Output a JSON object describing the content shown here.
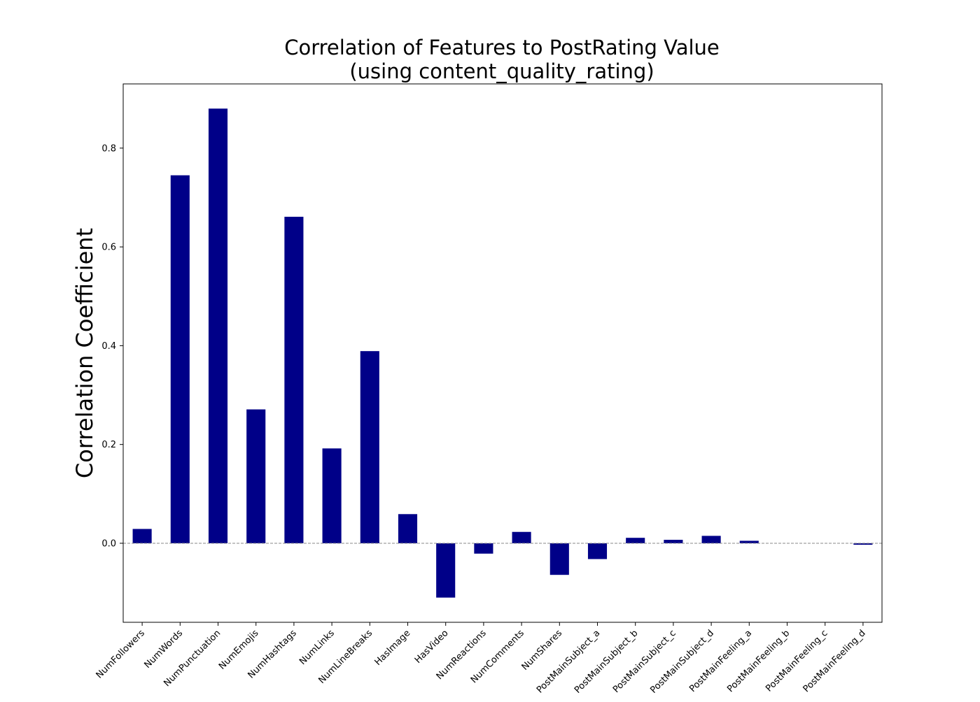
{
  "chart_data": {
    "type": "bar",
    "title": "Correlation of Features to PostRating Value",
    "subtitle": "(using content_quality_rating)",
    "xlabel": "",
    "ylabel": "Correlation Coefficient",
    "ylim": [
      -0.16,
      0.93
    ],
    "yticks": [
      0.0,
      0.2,
      0.4,
      0.6,
      0.8
    ],
    "ytick_labels": [
      "0.0",
      "0.2",
      "0.4",
      "0.6",
      "0.8"
    ],
    "grid": false,
    "zero_line": true,
    "bar_color": "#000088",
    "zero_line_color": "#888888",
    "categories": [
      "NumFollowers",
      "NumWords",
      "NumPunctuation",
      "NumEmojis",
      "NumHashtags",
      "NumLinks",
      "NumLineBreaks",
      "HasImage",
      "HasVideo",
      "NumReactions",
      "NumComments",
      "NumShares",
      "PostMainSubject_a",
      "PostMainSubject_b",
      "PostMainSubject_c",
      "PostMainSubject_d",
      "PostMainFeeling_a",
      "PostMainFeeling_b",
      "PostMainFeeling_c",
      "PostMainFeeling_d"
    ],
    "values": [
      0.029,
      0.745,
      0.88,
      0.271,
      0.661,
      0.192,
      0.389,
      0.059,
      -0.11,
      -0.021,
      0.023,
      -0.064,
      -0.032,
      0.011,
      0.007,
      0.015,
      0.005,
      0.0,
      0.0,
      -0.003
    ]
  }
}
